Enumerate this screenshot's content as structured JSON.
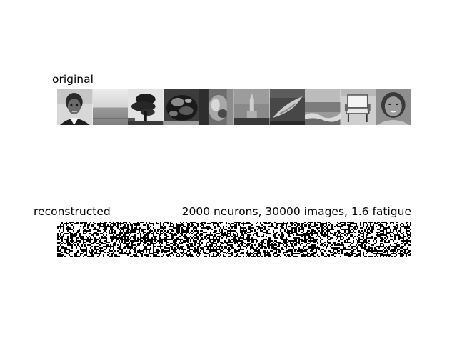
{
  "panels": {
    "original": {
      "title": "original",
      "thumbnails": [
        {
          "subject": "portrait-of-man"
        },
        {
          "subject": "sea-horizon"
        },
        {
          "subject": "tree-silhouette"
        },
        {
          "subject": "dark-object-closeup"
        },
        {
          "subject": "animal-closeup"
        },
        {
          "subject": "tower-building"
        },
        {
          "subject": "dolphin-underwater"
        },
        {
          "subject": "ocean-waves"
        },
        {
          "subject": "chair"
        },
        {
          "subject": "smiling-woman"
        }
      ]
    },
    "reconstructed": {
      "title": "reconstructed",
      "stats": "2000 neurons, 30000 images, 1.6 fatigue"
    }
  }
}
